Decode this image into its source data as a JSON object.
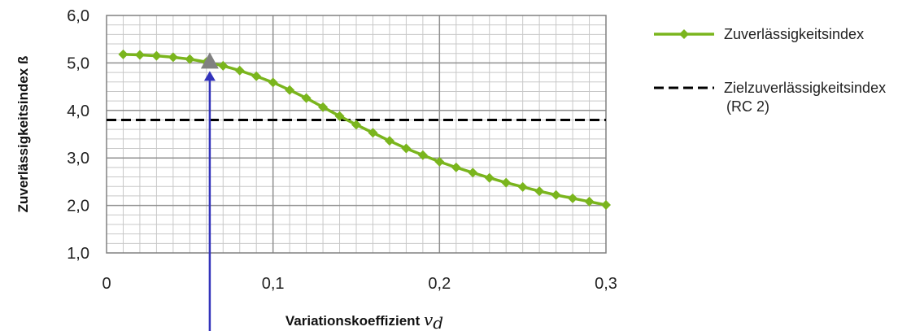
{
  "chart_data": {
    "type": "line",
    "xlabel": "Variationskoeffizient",
    "xlabel_symbol": "v",
    "xlabel_symbol_sub": "d",
    "ylabel": "Zuverlässigkeitsindex ß",
    "xlim": [
      0,
      0.3
    ],
    "ylim": [
      1.0,
      6.0
    ],
    "x_ticks": [
      "0",
      "0,1",
      "0,2",
      "0,3"
    ],
    "y_ticks": [
      "1,0",
      "2,0",
      "3,0",
      "4,0",
      "5,0",
      "6,0"
    ],
    "grid": true,
    "legend_position": "right",
    "series": [
      {
        "name": "Zuverlässigkeitsindex",
        "color": "#7ab51d",
        "marker": "diamond",
        "x": [
          0.01,
          0.02,
          0.03,
          0.04,
          0.05,
          0.06,
          0.07,
          0.08,
          0.09,
          0.1,
          0.11,
          0.12,
          0.13,
          0.14,
          0.15,
          0.16,
          0.17,
          0.18,
          0.19,
          0.2,
          0.21,
          0.22,
          0.23,
          0.24,
          0.25,
          0.26,
          0.27,
          0.28,
          0.29,
          0.3
        ],
        "y": [
          5.18,
          5.17,
          5.15,
          5.12,
          5.08,
          5.02,
          4.94,
          4.84,
          4.72,
          4.59,
          4.43,
          4.26,
          4.07,
          3.88,
          3.7,
          3.53,
          3.36,
          3.2,
          3.06,
          2.92,
          2.8,
          2.69,
          2.58,
          2.48,
          2.39,
          2.3,
          2.22,
          2.15,
          2.08,
          2.01
        ]
      },
      {
        "name": "Zielzuverlässigkeitsindex",
        "name_line2": "(RC 2)",
        "color": "#000000",
        "style": "dashed",
        "y": 3.8
      }
    ],
    "annotation": {
      "marker": "triangle",
      "marker_color": "#808080",
      "arrow_color": "#3333bb",
      "x": 0.062,
      "y": 5.0
    }
  }
}
